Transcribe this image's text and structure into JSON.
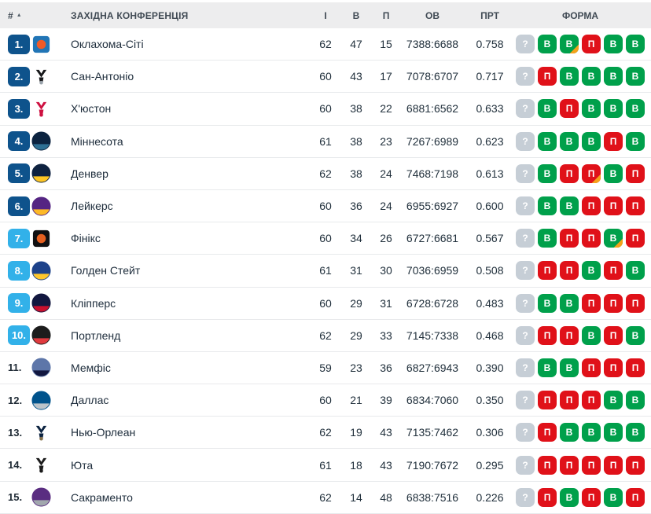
{
  "colors": {
    "playoff_badge": "#0e538c",
    "playin_badge": "#32b1e9",
    "win": "#00a04b",
    "loss": "#e01119",
    "unknown": "#c6ced6",
    "overtime_corner": "#f5a21b",
    "header_bg": "#ededee"
  },
  "table": {
    "header": {
      "rank_label": "#",
      "sort_icon": "▲",
      "conference_label": "ЗАХІДНА КОНФЕРЕНЦІЯ",
      "columns": {
        "games": "І",
        "wins": "В",
        "losses": "П",
        "points": "ОВ",
        "pct": "ПРТ",
        "form": "ФОРМА"
      }
    },
    "rows": [
      {
        "rank": "1.",
        "rank_style": "playoff",
        "team": "Оклахома-Сіті",
        "logo": {
          "icon": "oklahoma-city-logo",
          "shape": "tile",
          "c1": "#2175b6",
          "c2": "#f05a28"
        },
        "games": "62",
        "wins": "47",
        "losses": "15",
        "points": "7388:6688",
        "pct": "0.758",
        "form": [
          {
            "label": "?",
            "result": "unknown",
            "overtime": false
          },
          {
            "label": "В",
            "result": "win",
            "overtime": false
          },
          {
            "label": "В",
            "result": "win",
            "overtime": true
          },
          {
            "label": "П",
            "result": "loss",
            "overtime": false
          },
          {
            "label": "В",
            "result": "win",
            "overtime": false
          },
          {
            "label": "В",
            "result": "win",
            "overtime": false
          }
        ]
      },
      {
        "rank": "2.",
        "rank_style": "playoff",
        "team": "Сан-Антоніо",
        "logo": {
          "icon": "san-antonio-logo",
          "shape": "mark",
          "c1": "#17181a",
          "c2": "#9aa3ab"
        },
        "games": "60",
        "wins": "43",
        "losses": "17",
        "points": "7078:6707",
        "pct": "0.717",
        "form": [
          {
            "label": "?",
            "result": "unknown",
            "overtime": false
          },
          {
            "label": "П",
            "result": "loss",
            "overtime": false
          },
          {
            "label": "В",
            "result": "win",
            "overtime": false
          },
          {
            "label": "В",
            "result": "win",
            "overtime": false
          },
          {
            "label": "В",
            "result": "win",
            "overtime": false
          },
          {
            "label": "В",
            "result": "win",
            "overtime": false
          }
        ]
      },
      {
        "rank": "3.",
        "rank_style": "playoff",
        "team": "Х'юстон",
        "logo": {
          "icon": "houston-logo",
          "shape": "mark",
          "c1": "#ce1141",
          "c2": "#ce1141"
        },
        "games": "60",
        "wins": "38",
        "losses": "22",
        "points": "6881:6562",
        "pct": "0.633",
        "form": [
          {
            "label": "?",
            "result": "unknown",
            "overtime": false
          },
          {
            "label": "В",
            "result": "win",
            "overtime": false
          },
          {
            "label": "П",
            "result": "loss",
            "overtime": false
          },
          {
            "label": "В",
            "result": "win",
            "overtime": false
          },
          {
            "label": "В",
            "result": "win",
            "overtime": false
          },
          {
            "label": "В",
            "result": "win",
            "overtime": false
          }
        ]
      },
      {
        "rank": "4.",
        "rank_style": "playoff",
        "team": "Міннесота",
        "logo": {
          "icon": "minnesota-logo",
          "shape": "disc",
          "c1": "#0c2340",
          "c2": "#2e6f93"
        },
        "games": "61",
        "wins": "38",
        "losses": "23",
        "points": "7267:6989",
        "pct": "0.623",
        "form": [
          {
            "label": "?",
            "result": "unknown",
            "overtime": false
          },
          {
            "label": "В",
            "result": "win",
            "overtime": false
          },
          {
            "label": "В",
            "result": "win",
            "overtime": false
          },
          {
            "label": "В",
            "result": "win",
            "overtime": false
          },
          {
            "label": "П",
            "result": "loss",
            "overtime": false
          },
          {
            "label": "В",
            "result": "win",
            "overtime": false
          }
        ]
      },
      {
        "rank": "5.",
        "rank_style": "playoff",
        "team": "Денвер",
        "logo": {
          "icon": "denver-logo",
          "shape": "disc",
          "c1": "#0e2240",
          "c2": "#fec524"
        },
        "games": "62",
        "wins": "38",
        "losses": "24",
        "points": "7468:7198",
        "pct": "0.613",
        "form": [
          {
            "label": "?",
            "result": "unknown",
            "overtime": false
          },
          {
            "label": "В",
            "result": "win",
            "overtime": false
          },
          {
            "label": "П",
            "result": "loss",
            "overtime": false
          },
          {
            "label": "П",
            "result": "loss",
            "overtime": true
          },
          {
            "label": "В",
            "result": "win",
            "overtime": false
          },
          {
            "label": "П",
            "result": "loss",
            "overtime": false
          }
        ]
      },
      {
        "rank": "6.",
        "rank_style": "playoff",
        "team": "Лейкерс",
        "logo": {
          "icon": "lakers-logo",
          "shape": "disc",
          "c1": "#552583",
          "c2": "#fdb927"
        },
        "games": "60",
        "wins": "36",
        "losses": "24",
        "points": "6955:6927",
        "pct": "0.600",
        "form": [
          {
            "label": "?",
            "result": "unknown",
            "overtime": false
          },
          {
            "label": "В",
            "result": "win",
            "overtime": false
          },
          {
            "label": "В",
            "result": "win",
            "overtime": false
          },
          {
            "label": "П",
            "result": "loss",
            "overtime": false
          },
          {
            "label": "П",
            "result": "loss",
            "overtime": false
          },
          {
            "label": "П",
            "result": "loss",
            "overtime": false
          }
        ]
      },
      {
        "rank": "7.",
        "rank_style": "playin",
        "team": "Фінікс",
        "logo": {
          "icon": "phoenix-logo",
          "shape": "tile",
          "c1": "#101012",
          "c2": "#e56020"
        },
        "games": "60",
        "wins": "34",
        "losses": "26",
        "points": "6727:6681",
        "pct": "0.567",
        "form": [
          {
            "label": "?",
            "result": "unknown",
            "overtime": false
          },
          {
            "label": "В",
            "result": "win",
            "overtime": false
          },
          {
            "label": "П",
            "result": "loss",
            "overtime": false
          },
          {
            "label": "П",
            "result": "loss",
            "overtime": false
          },
          {
            "label": "В",
            "result": "win",
            "overtime": true
          },
          {
            "label": "П",
            "result": "loss",
            "overtime": false
          }
        ]
      },
      {
        "rank": "8.",
        "rank_style": "playin",
        "team": "Голден Стейт",
        "logo": {
          "icon": "golden-state-logo",
          "shape": "disc",
          "c1": "#1d428a",
          "c2": "#ffc72c"
        },
        "games": "61",
        "wins": "31",
        "losses": "30",
        "points": "7036:6959",
        "pct": "0.508",
        "form": [
          {
            "label": "?",
            "result": "unknown",
            "overtime": false
          },
          {
            "label": "П",
            "result": "loss",
            "overtime": false
          },
          {
            "label": "П",
            "result": "loss",
            "overtime": false
          },
          {
            "label": "В",
            "result": "win",
            "overtime": false
          },
          {
            "label": "П",
            "result": "loss",
            "overtime": false
          },
          {
            "label": "В",
            "result": "win",
            "overtime": false
          }
        ]
      },
      {
        "rank": "9.",
        "rank_style": "playin",
        "team": "Кліпперс",
        "logo": {
          "icon": "clippers-logo",
          "shape": "disc",
          "c1": "#12173f",
          "c2": "#c8102e"
        },
        "games": "60",
        "wins": "29",
        "losses": "31",
        "points": "6728:6728",
        "pct": "0.483",
        "form": [
          {
            "label": "?",
            "result": "unknown",
            "overtime": false
          },
          {
            "label": "В",
            "result": "win",
            "overtime": false
          },
          {
            "label": "В",
            "result": "win",
            "overtime": false
          },
          {
            "label": "П",
            "result": "loss",
            "overtime": false
          },
          {
            "label": "П",
            "result": "loss",
            "overtime": false
          },
          {
            "label": "П",
            "result": "loss",
            "overtime": false
          }
        ]
      },
      {
        "rank": "10.",
        "rank_style": "playin",
        "team": "Портленд",
        "logo": {
          "icon": "portland-logo",
          "shape": "disc",
          "c1": "#1c1c1c",
          "c2": "#e03a3e"
        },
        "games": "62",
        "wins": "29",
        "losses": "33",
        "points": "7145:7338",
        "pct": "0.468",
        "form": [
          {
            "label": "?",
            "result": "unknown",
            "overtime": false
          },
          {
            "label": "П",
            "result": "loss",
            "overtime": false
          },
          {
            "label": "П",
            "result": "loss",
            "overtime": false
          },
          {
            "label": "В",
            "result": "win",
            "overtime": false
          },
          {
            "label": "П",
            "result": "loss",
            "overtime": false
          },
          {
            "label": "В",
            "result": "win",
            "overtime": false
          }
        ]
      },
      {
        "rank": "11.",
        "rank_style": "none",
        "team": "Мемфіс",
        "logo": {
          "icon": "memphis-logo",
          "shape": "disc",
          "c1": "#5d76a9",
          "c2": "#12173f"
        },
        "games": "59",
        "wins": "23",
        "losses": "36",
        "points": "6827:6943",
        "pct": "0.390",
        "form": [
          {
            "label": "?",
            "result": "unknown",
            "overtime": false
          },
          {
            "label": "В",
            "result": "win",
            "overtime": false
          },
          {
            "label": "В",
            "result": "win",
            "overtime": false
          },
          {
            "label": "П",
            "result": "loss",
            "overtime": false
          },
          {
            "label": "П",
            "result": "loss",
            "overtime": false
          },
          {
            "label": "П",
            "result": "loss",
            "overtime": false
          }
        ]
      },
      {
        "rank": "12.",
        "rank_style": "none",
        "team": "Даллас",
        "logo": {
          "icon": "dallas-logo",
          "shape": "disc",
          "c1": "#00538c",
          "c2": "#bbc4ca"
        },
        "games": "60",
        "wins": "21",
        "losses": "39",
        "points": "6834:7060",
        "pct": "0.350",
        "form": [
          {
            "label": "?",
            "result": "unknown",
            "overtime": false
          },
          {
            "label": "П",
            "result": "loss",
            "overtime": false
          },
          {
            "label": "П",
            "result": "loss",
            "overtime": false
          },
          {
            "label": "П",
            "result": "loss",
            "overtime": false
          },
          {
            "label": "В",
            "result": "win",
            "overtime": false
          },
          {
            "label": "В",
            "result": "win",
            "overtime": false
          }
        ]
      },
      {
        "rank": "13.",
        "rank_style": "none",
        "team": "Нью-Орлеан",
        "logo": {
          "icon": "new-orleans-logo",
          "shape": "mark",
          "c1": "#0c2340",
          "c2": "#85714d"
        },
        "games": "62",
        "wins": "19",
        "losses": "43",
        "points": "7135:7462",
        "pct": "0.306",
        "form": [
          {
            "label": "?",
            "result": "unknown",
            "overtime": false
          },
          {
            "label": "П",
            "result": "loss",
            "overtime": false
          },
          {
            "label": "В",
            "result": "win",
            "overtime": false
          },
          {
            "label": "В",
            "result": "win",
            "overtime": false
          },
          {
            "label": "В",
            "result": "win",
            "overtime": false
          },
          {
            "label": "В",
            "result": "win",
            "overtime": false
          }
        ]
      },
      {
        "rank": "14.",
        "rank_style": "none",
        "team": "Юта",
        "logo": {
          "icon": "utah-logo",
          "shape": "mark",
          "c1": "#1c1c1c",
          "c2": "#1c1c1c"
        },
        "games": "61",
        "wins": "18",
        "losses": "43",
        "points": "7190:7672",
        "pct": "0.295",
        "form": [
          {
            "label": "?",
            "result": "unknown",
            "overtime": false
          },
          {
            "label": "П",
            "result": "loss",
            "overtime": false
          },
          {
            "label": "П",
            "result": "loss",
            "overtime": false
          },
          {
            "label": "П",
            "result": "loss",
            "overtime": false
          },
          {
            "label": "П",
            "result": "loss",
            "overtime": false
          },
          {
            "label": "П",
            "result": "loss",
            "overtime": false
          }
        ]
      },
      {
        "rank": "15.",
        "rank_style": "none",
        "team": "Сакраменто",
        "logo": {
          "icon": "sacramento-logo",
          "shape": "disc",
          "c1": "#5a2d81",
          "c2": "#a1a7ad"
        },
        "games": "62",
        "wins": "14",
        "losses": "48",
        "points": "6838:7516",
        "pct": "0.226",
        "form": [
          {
            "label": "?",
            "result": "unknown",
            "overtime": false
          },
          {
            "label": "П",
            "result": "loss",
            "overtime": false
          },
          {
            "label": "В",
            "result": "win",
            "overtime": false
          },
          {
            "label": "П",
            "result": "loss",
            "overtime": false
          },
          {
            "label": "В",
            "result": "win",
            "overtime": false
          },
          {
            "label": "П",
            "result": "loss",
            "overtime": false
          }
        ]
      }
    ]
  }
}
